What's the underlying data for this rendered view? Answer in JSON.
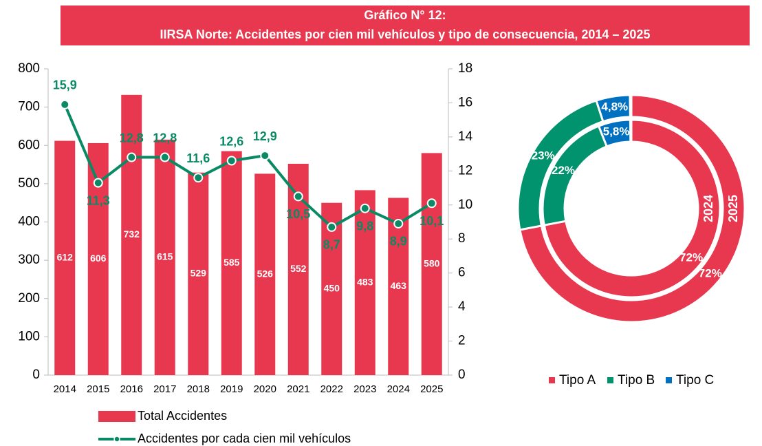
{
  "chart_data": [
    {
      "type": "bar",
      "title": "Gráfico N° 12:",
      "subtitle": "IIRSA Norte: Accidentes por cien mil vehículos y tipo de consecuencia, 2014 – 2025",
      "categories": [
        "2014",
        "2015",
        "2016",
        "2017",
        "2018",
        "2019",
        "2020",
        "2021",
        "2022",
        "2023",
        "2024",
        "2025"
      ],
      "series": [
        {
          "name": "Total Accidentes",
          "type": "bar",
          "color": "#e8384f",
          "values": [
            612,
            606,
            732,
            615,
            529,
            585,
            526,
            552,
            450,
            483,
            463,
            580
          ]
        },
        {
          "name": "Accidentes por cada cien mil vehículos",
          "type": "line",
          "axis": "y2",
          "color": "#0a8a64",
          "values": [
            15.9,
            11.3,
            12.8,
            12.8,
            11.6,
            12.6,
            12.9,
            10.5,
            8.7,
            9.8,
            8.9,
            10.1
          ],
          "value_labels": [
            "15,9",
            "11,3",
            "12,8",
            "12,8",
            "11,6",
            "12,6",
            "12,9",
            "10,5",
            "8,7",
            "9,8",
            "8,9",
            "10,1"
          ]
        }
      ],
      "ylim": [
        0,
        800
      ],
      "yticks": [
        0,
        100,
        200,
        300,
        400,
        500,
        600,
        700,
        800
      ],
      "y2lim": [
        0,
        18
      ],
      "y2ticks": [
        0,
        2,
        4,
        6,
        8,
        10,
        12,
        14,
        16,
        18
      ],
      "legend": "bottom"
    },
    {
      "type": "donut",
      "categories": [
        "Tipo A",
        "Tipo B",
        "Tipo C"
      ],
      "colors": [
        "#e8384f",
        "#00936e",
        "#0070c0"
      ],
      "series": [
        {
          "name": "2024",
          "values": [
            72,
            22,
            5.8
          ],
          "value_labels": [
            "72%",
            "22%",
            "5,8%"
          ]
        },
        {
          "name": "2025",
          "values": [
            72,
            23,
            4.8
          ],
          "value_labels": [
            "72%",
            "23%",
            "4,8%"
          ]
        }
      ],
      "legend": "bottom"
    }
  ]
}
